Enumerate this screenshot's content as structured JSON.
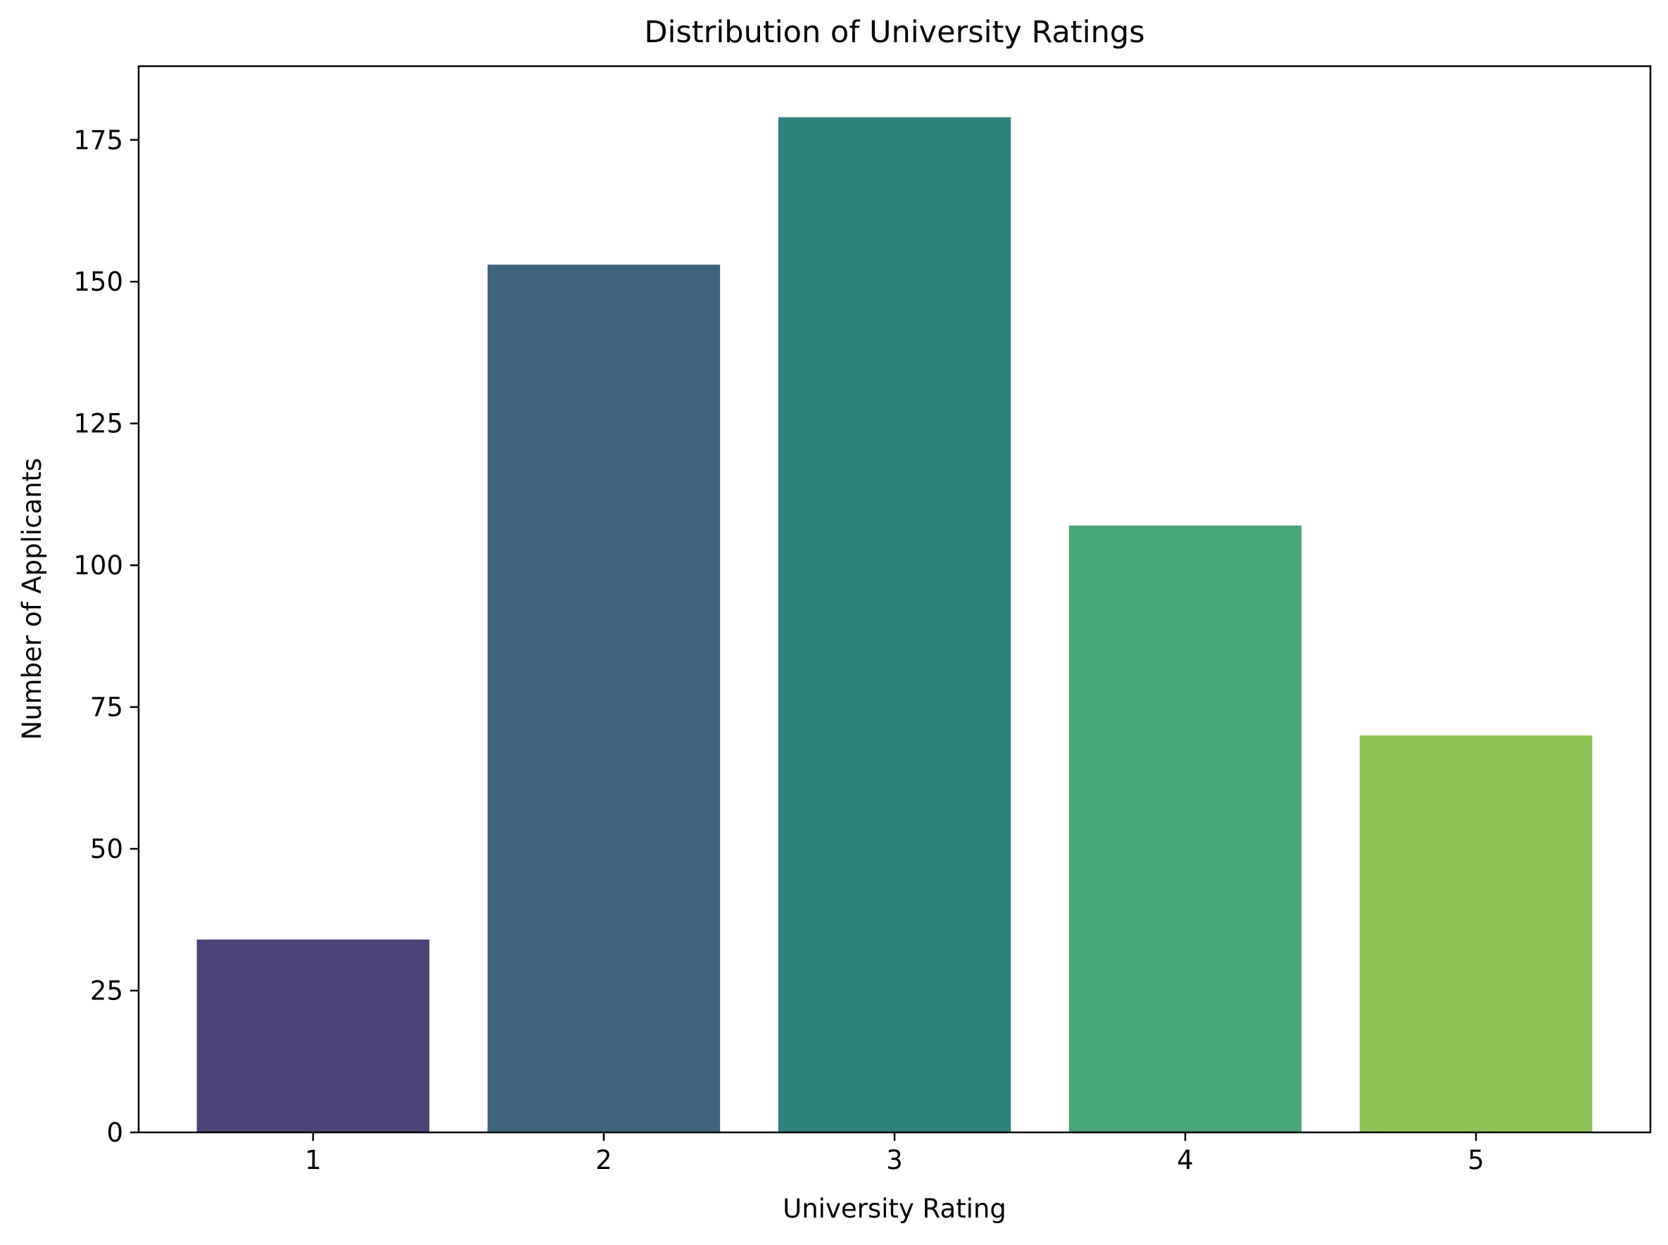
{
  "chart_data": {
    "type": "bar",
    "title": "Distribution of University Ratings",
    "xlabel": "University Rating",
    "ylabel": "Number of Applicants",
    "categories": [
      "1",
      "2",
      "3",
      "4",
      "5"
    ],
    "values": [
      34,
      153,
      179,
      107,
      70
    ],
    "colors": [
      "#4d4279",
      "#3e6580",
      "#2f837d",
      "#48a777",
      "#8ec356"
    ],
    "ylim": [
      0,
      188
    ],
    "yticks": [
      0,
      25,
      50,
      75,
      100,
      125,
      150,
      175
    ],
    "grid": false,
    "legend": "none"
  }
}
